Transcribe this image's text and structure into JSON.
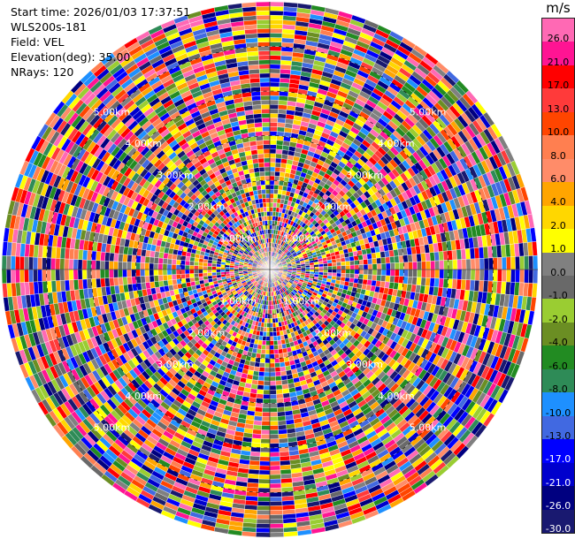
{
  "info": {
    "start_time": "Start time: 2026/01/03 17:37:51",
    "instrument": "WLS200s-181",
    "field": "Field: VEL",
    "elevation": "Elevation(deg): 35.00",
    "nrays": "NRays: 120"
  },
  "chart_data": {
    "type": "heatmap",
    "projection": "polar-ppi",
    "field": "VEL",
    "units": "m/s",
    "n_rays": 120,
    "elevation_deg": 35.0,
    "range_labels": [
      "1.00km",
      "2.00km",
      "3.00km",
      "4.00km",
      "5.00km"
    ],
    "range_rings_km": [
      1,
      2,
      3,
      4,
      5
    ],
    "max_range_km": 6.0,
    "colorbar": {
      "unit": "m/s",
      "vmin": -30.0,
      "vmax": 30.0,
      "ticks": [
        "26.0",
        "21.0",
        "17.0",
        "13.0",
        "10.0",
        "8.0",
        "6.0",
        "4.0",
        "2.0",
        "1.0",
        "0.0",
        "-1.0",
        "-2.0",
        "-4.0",
        "-6.0",
        "-8.0",
        "-10.0",
        "-13.0",
        "-17.0",
        "-21.0",
        "-26.0",
        "-30.0"
      ],
      "colors": [
        "#ff69b4",
        "#ff1493",
        "#ff0000",
        "#ff3a3a",
        "#ff4500",
        "#ff7f50",
        "#ff8c69",
        "#ffa500",
        "#ffd700",
        "#ffff00",
        "#808080",
        "#696969",
        "#9acd32",
        "#6b8e23",
        "#228b22",
        "#2e8b57",
        "#1e90ff",
        "#4169e1",
        "#0000ff",
        "#0000cd",
        "#000080",
        "#191970"
      ]
    }
  }
}
